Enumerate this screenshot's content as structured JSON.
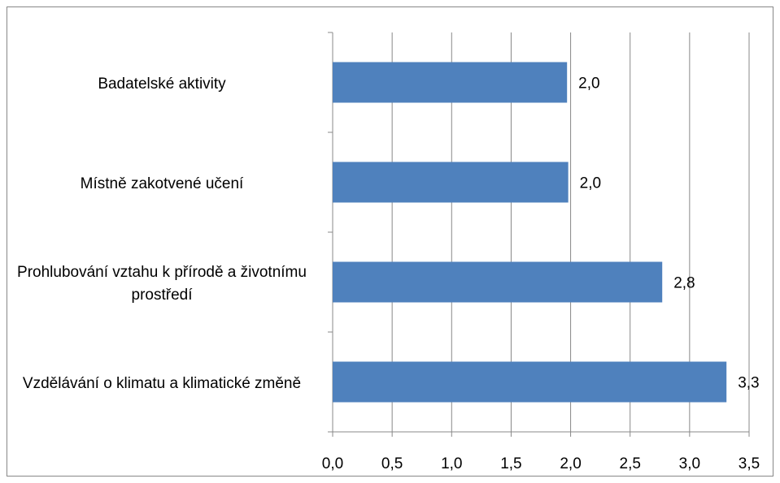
{
  "chart_data": {
    "type": "bar",
    "orientation": "horizontal",
    "categories": [
      "Badatelské aktivity",
      "Místně zakotvené učení",
      "Prohlubování vztahu k přírodě a životnímu prostředí",
      "Vzdělávání o klimatu a klimatické změně"
    ],
    "values": [
      1.97,
      1.98,
      2.77,
      3.31
    ],
    "value_labels": [
      "2,0",
      "2,0",
      "2,8",
      "3,3"
    ],
    "color": "#4f81bd",
    "xlim": [
      0,
      3.5
    ],
    "xticks": [
      {
        "value": 0,
        "label": "0,0"
      },
      {
        "value": 0.5,
        "label": "0,5"
      },
      {
        "value": 1,
        "label": "1,0"
      },
      {
        "value": 1.5,
        "label": "1,5"
      },
      {
        "value": 2,
        "label": "2,0"
      },
      {
        "value": 2.5,
        "label": "2,5"
      },
      {
        "value": 3,
        "label": "3,0"
      },
      {
        "value": 3.5,
        "label": "3,5"
      }
    ],
    "grid": true
  }
}
